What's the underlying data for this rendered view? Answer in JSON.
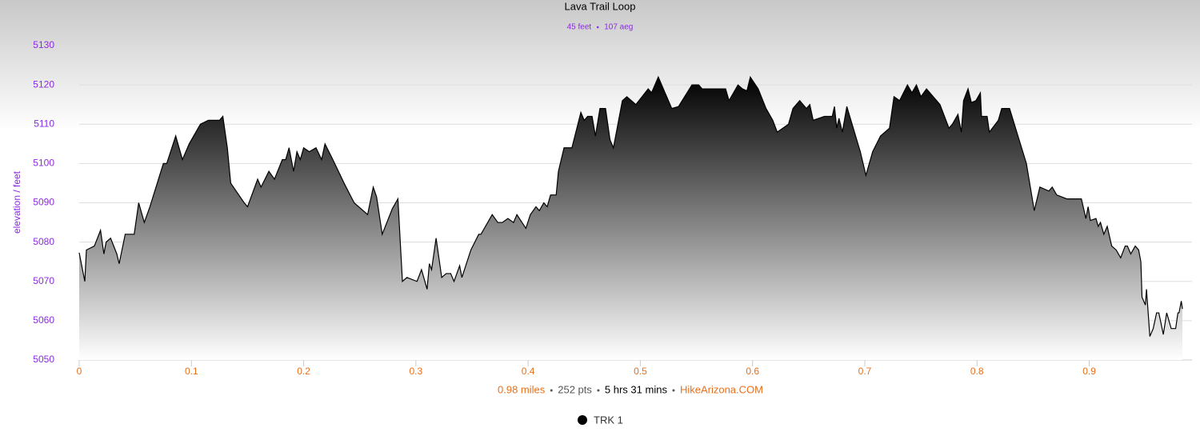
{
  "chart_data": {
    "type": "area",
    "title": "Lava Trail Loop",
    "subtitle_parts": [
      "45 feet",
      "107 aeg"
    ],
    "subtitle_color": "#8b2be2",
    "ylabel": "elevation / feet",
    "ylabel_color": "#8b2be2",
    "x_label_parts": [
      {
        "text": "0.98 miles",
        "color": "#e8701a"
      },
      {
        "text": "252 pts",
        "color": "#555555"
      },
      {
        "text": "5 hrs 31 mins",
        "color": "#000000"
      },
      {
        "text": "HikeArizona.COM",
        "color": "#e8701a"
      }
    ],
    "xtick_color": "#e8701a",
    "ytick_color": "#8b2be2",
    "grid": true,
    "xlim": [
      0,
      0.983
    ],
    "xticks": [
      0,
      0.1,
      0.2,
      0.3,
      0.4,
      0.5,
      0.6,
      0.7,
      0.8,
      0.9
    ],
    "ylim": [
      5050,
      5130
    ],
    "yticks": [
      5050,
      5060,
      5070,
      5080,
      5090,
      5100,
      5110,
      5120,
      5130
    ],
    "legend": "bottom",
    "x": [
      0,
      0.005,
      0.0064,
      0.0135,
      0.019,
      0.022,
      0.024,
      0.028,
      0.0335,
      0.0356,
      0.041,
      0.049,
      0.053,
      0.058,
      0.063,
      0.075,
      0.078,
      0.086,
      0.092,
      0.098,
      0.108,
      0.115,
      0.125,
      0.128,
      0.132,
      0.135,
      0.147,
      0.15,
      0.159,
      0.162,
      0.169,
      0.174,
      0.181,
      0.184,
      0.187,
      0.191,
      0.194,
      0.197,
      0.2,
      0.205,
      0.211,
      0.216,
      0.219,
      0.226,
      0.236,
      0.245,
      0.257,
      0.262,
      0.265,
      0.27,
      0.279,
      0.284,
      0.288,
      0.292,
      0.301,
      0.305,
      0.31,
      0.312,
      0.314,
      0.318,
      0.323,
      0.327,
      0.331,
      0.334,
      0.339,
      0.341,
      0.349,
      0.356,
      0.358,
      0.368,
      0.373,
      0.377,
      0.382,
      0.387,
      0.39,
      0.398,
      0.402,
      0.407,
      0.41,
      0.414,
      0.417,
      0.42,
      0.425,
      0.427,
      0.432,
      0.439,
      0.447,
      0.45,
      0.453,
      0.457,
      0.46,
      0.464,
      0.469,
      0.473,
      0.476,
      0.484,
      0.488,
      0.496,
      0.507,
      0.51,
      0.516,
      0.528,
      0.534,
      0.546,
      0.552,
      0.555,
      0.576,
      0.579,
      0.587,
      0.591,
      0.595,
      0.598,
      0.605,
      0.612,
      0.618,
      0.622,
      0.632,
      0.636,
      0.642,
      0.648,
      0.651,
      0.654,
      0.664,
      0.671,
      0.673,
      0.675,
      0.677,
      0.68,
      0.684,
      0.696,
      0.701,
      0.703,
      0.707,
      0.714,
      0.722,
      0.726,
      0.731,
      0.738,
      0.742,
      0.746,
      0.75,
      0.755,
      0.767,
      0.775,
      0.778,
      0.783,
      0.786,
      0.788,
      0.792,
      0.795,
      0.799,
      0.803,
      0.804,
      0.809,
      0.811,
      0.819,
      0.822,
      0.829,
      0.844,
      0.851,
      0.856,
      0.864,
      0.867,
      0.871,
      0.88,
      0.893,
      0.897,
      0.899,
      0.901,
      0.906,
      0.908,
      0.91,
      0.913,
      0.916,
      0.92,
      0.924,
      0.928,
      0.932,
      0.934,
      0.937,
      0.941,
      0.944,
      0.946,
      0.947,
      0.95,
      0.951,
      0.954,
      0.957,
      0.96,
      0.962,
      0.966,
      0.969,
      0.973,
      0.977,
      0.979,
      0.98,
      0.982,
      0.983
    ],
    "series": [
      {
        "name": "TRK 1",
        "color": "#000000",
        "values": [
          5077.3,
          5070,
          5078,
          5079,
          5083,
          5077,
          5080,
          5081,
          5077,
          5074.5,
          5082,
          5082,
          5090,
          5085,
          5089,
          5100,
          5100,
          5107,
          5101,
          5105,
          5110,
          5111,
          5111,
          5112,
          5104,
          5095,
          5090,
          5089,
          5096,
          5094,
          5098,
          5096,
          5101,
          5101,
          5104,
          5098,
          5103,
          5101,
          5104,
          5103,
          5104,
          5101,
          5105,
          5101,
          5095,
          5090,
          5087,
          5094,
          5091.5,
          5082,
          5088.5,
          5091,
          5070,
          5071,
          5070,
          5073,
          5068,
          5074.5,
          5073,
          5081,
          5071,
          5072,
          5072,
          5070,
          5074,
          5071,
          5078,
          5082,
          5082,
          5087,
          5085,
          5085,
          5086,
          5085,
          5087,
          5083.5,
          5087,
          5089,
          5088,
          5090,
          5089,
          5092,
          5092,
          5098,
          5104,
          5104,
          5113,
          5111,
          5112,
          5112,
          5107,
          5114,
          5114,
          5106,
          5104,
          5116,
          5117,
          5115,
          5119,
          5118,
          5122,
          5114,
          5114.5,
          5120,
          5120,
          5119,
          5119,
          5116,
          5120,
          5119,
          5118.5,
          5122,
          5119,
          5114,
          5111,
          5108,
          5110,
          5114,
          5116,
          5114,
          5115,
          5111,
          5112,
          5112,
          5114.5,
          5109,
          5111.5,
          5108,
          5114.5,
          5103,
          5097,
          5099,
          5103,
          5107,
          5109,
          5117,
          5116,
          5120,
          5118,
          5120,
          5117,
          5119,
          5115,
          5109,
          5110,
          5112.5,
          5108,
          5116,
          5119,
          5115.5,
          5116,
          5118,
          5112,
          5112,
          5108,
          5111,
          5114,
          5114,
          5100,
          5088,
          5094,
          5093,
          5094,
          5092,
          5091,
          5091,
          5086,
          5089,
          5085.5,
          5086,
          5084,
          5085,
          5082,
          5084,
          5079,
          5078,
          5076,
          5079,
          5079,
          5077,
          5079,
          5078,
          5075,
          5066,
          5064,
          5068,
          5056,
          5058,
          5062,
          5062,
          5056.5,
          5062,
          5058,
          5058,
          5062,
          5062,
          5065,
          5063
        ]
      }
    ]
  }
}
